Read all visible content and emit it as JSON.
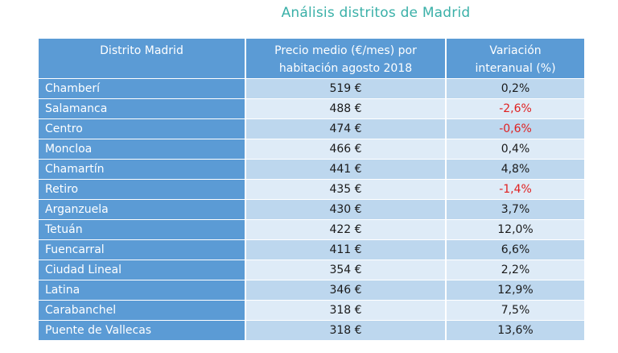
{
  "chart_data": {
    "type": "table",
    "title": "Análisis distritos de Madrid",
    "columns": [
      "Distrito Madrid",
      "Precio medio (€/mes) por habitación agosto 2018",
      "Variación interanual (%)"
    ],
    "header_lines": [
      [
        "Distrito Madrid"
      ],
      [
        "Precio medio (€/mes) por",
        "habitación agosto 2018"
      ],
      [
        "Variación",
        "interanual (%)"
      ]
    ],
    "rows": [
      {
        "district": "Chamberí",
        "price": "519 €",
        "variation": "0,2%",
        "negative": false
      },
      {
        "district": "Salamanca",
        "price": "488 €",
        "variation": "-2,6%",
        "negative": true
      },
      {
        "district": "Centro",
        "price": "474 €",
        "variation": "-0,6%",
        "negative": true
      },
      {
        "district": "Moncloa",
        "price": "466 €",
        "variation": "0,4%",
        "negative": false
      },
      {
        "district": "Chamartín",
        "price": "441 €",
        "variation": "4,8%",
        "negative": false
      },
      {
        "district": "Retiro",
        "price": "435 €",
        "variation": "-1,4%",
        "negative": true
      },
      {
        "district": "Arganzuela",
        "price": "430 €",
        "variation": "3,7%",
        "negative": false
      },
      {
        "district": "Tetuán",
        "price": "422 €",
        "variation": "12,0%",
        "negative": false
      },
      {
        "district": "Fuencarral",
        "price": "411 €",
        "variation": "6,6%",
        "negative": false
      },
      {
        "district": "Ciudad Lineal",
        "price": "354 €",
        "variation": "2,2%",
        "negative": false
      },
      {
        "district": "Latina",
        "price": "346 €",
        "variation": "12,9%",
        "negative": false
      },
      {
        "district": "Carabanchel",
        "price": "318 €",
        "variation": "7,5%",
        "negative": false
      },
      {
        "district": "Puente de Vallecas",
        "price": "318 €",
        "variation": "13,6%",
        "negative": false
      }
    ]
  },
  "colors": {
    "title": "#3ab0a8",
    "header_bg": "#5b9bd5",
    "row_dark": "#bdd7ee",
    "row_light": "#deebf7",
    "negative": "#e02020"
  }
}
